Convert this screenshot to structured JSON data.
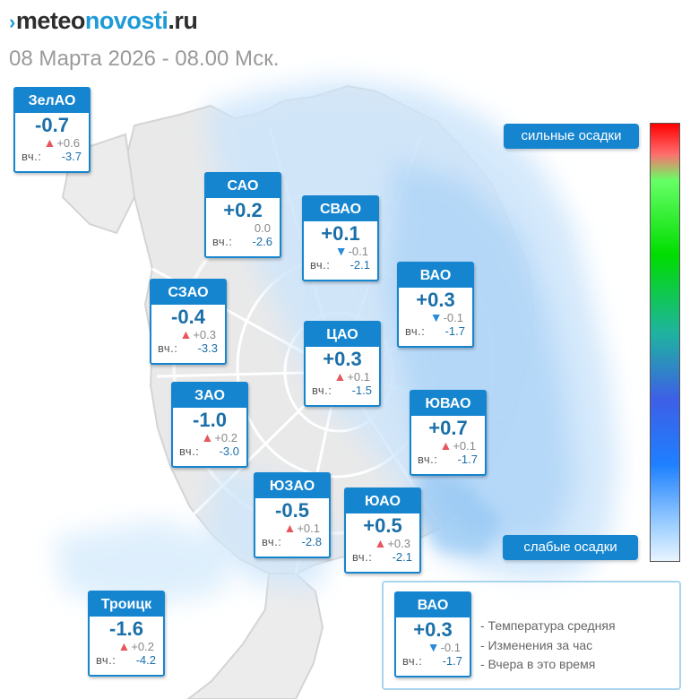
{
  "header": {
    "logo_mark": "›",
    "logo_part1": "meteo",
    "logo_part2": "novosti",
    "logo_part3": ".ru",
    "datetime": "08 Марта 2026 - 08.00 Мск."
  },
  "districts": [
    {
      "id": "zelao",
      "name": "ЗелАО",
      "temp": "-0.7",
      "arrow": "up",
      "delta": "+0.6",
      "yesterday_label": "вч.:",
      "yesterday": "-3.7"
    },
    {
      "id": "sao",
      "name": "САО",
      "temp": "+0.2",
      "arrow": "none",
      "delta": "0.0",
      "yesterday_label": "вч.:",
      "yesterday": "-2.6"
    },
    {
      "id": "svao",
      "name": "СВАО",
      "temp": "+0.1",
      "arrow": "down",
      "delta": "-0.1",
      "yesterday_label": "вч.:",
      "yesterday": "-2.1"
    },
    {
      "id": "vao",
      "name": "ВАО",
      "temp": "+0.3",
      "arrow": "down",
      "delta": "-0.1",
      "yesterday_label": "вч.:",
      "yesterday": "-1.7"
    },
    {
      "id": "szao",
      "name": "СЗАО",
      "temp": "-0.4",
      "arrow": "up",
      "delta": "+0.3",
      "yesterday_label": "вч.:",
      "yesterday": "-3.3"
    },
    {
      "id": "cao",
      "name": "ЦАО",
      "temp": "+0.3",
      "arrow": "up",
      "delta": "+0.1",
      "yesterday_label": "вч.:",
      "yesterday": "-1.5"
    },
    {
      "id": "zao",
      "name": "ЗАО",
      "temp": "-1.0",
      "arrow": "up",
      "delta": "+0.2",
      "yesterday_label": "вч.:",
      "yesterday": "-3.0"
    },
    {
      "id": "yuvao",
      "name": "ЮВАО",
      "temp": "+0.7",
      "arrow": "up",
      "delta": "+0.1",
      "yesterday_label": "вч.:",
      "yesterday": "-1.7"
    },
    {
      "id": "yuzao",
      "name": "ЮЗАО",
      "temp": "-0.5",
      "arrow": "up",
      "delta": "+0.1",
      "yesterday_label": "вч.:",
      "yesterday": "-2.8"
    },
    {
      "id": "yuao",
      "name": "ЮАО",
      "temp": "+0.5",
      "arrow": "up",
      "delta": "+0.3",
      "yesterday_label": "вч.:",
      "yesterday": "-2.1"
    },
    {
      "id": "troick",
      "name": "Троицк",
      "temp": "-1.6",
      "arrow": "up",
      "delta": "+0.2",
      "yesterday_label": "вч.:",
      "yesterday": "-4.2"
    }
  ],
  "scale": {
    "top_label": "сильные осадки",
    "bottom_label": "слабые осадки"
  },
  "legend": {
    "sample": {
      "name": "ВАО",
      "temp": "+0.3",
      "arrow": "down",
      "delta": "-0.1",
      "yesterday_label": "вч.:",
      "yesterday": "-1.7"
    },
    "note_temp": "- Температура средняя",
    "note_change": "- Изменения за час",
    "note_yesterday": "- Вчера в это время"
  },
  "colors": {
    "card_blue": "#1685cf",
    "temp_text": "#1a6fa9",
    "arrow_up": "#e8565d",
    "arrow_down": "#2a8ad6",
    "precip_light": "#cfe6fb",
    "map_grey": "#e6e6e6"
  }
}
